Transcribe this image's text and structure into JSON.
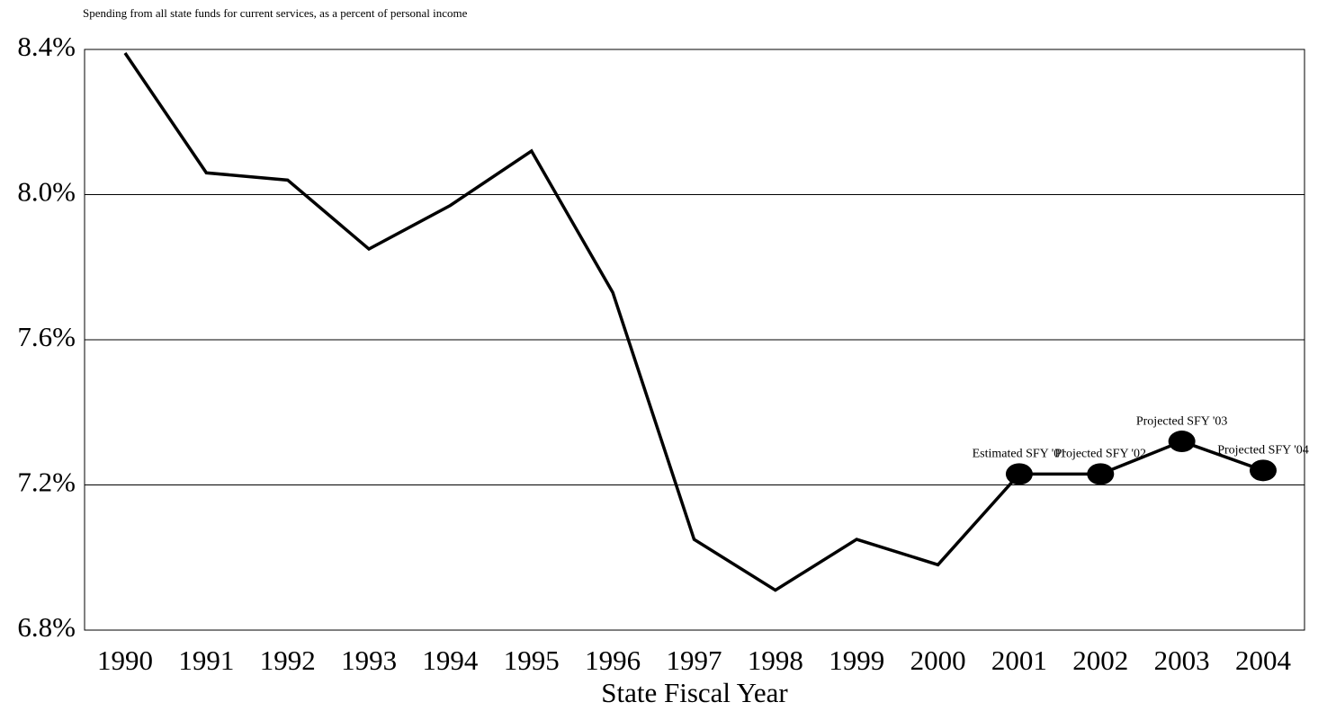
{
  "chart_data": {
    "type": "line",
    "title": "Spending from all state funds for current services, as a percent of personal income",
    "xlabel": "State Fiscal Year",
    "categories": [
      "1990",
      "1991",
      "1992",
      "1993",
      "1994",
      "1995",
      "1996",
      "1997",
      "1998",
      "1999",
      "2000",
      "2001",
      "2002",
      "2003",
      "2004"
    ],
    "values": [
      8.39,
      8.06,
      8.04,
      7.85,
      7.97,
      8.12,
      7.73,
      7.05,
      6.91,
      7.05,
      6.98,
      7.23,
      7.23,
      7.32,
      7.24
    ],
    "point_labels": [
      null,
      null,
      null,
      null,
      null,
      null,
      null,
      null,
      null,
      null,
      null,
      "Estimated SFY '01",
      "Projected SFY '02",
      "Projected SFY '03",
      "Projected SFY '04"
    ],
    "color": "#000000",
    "ylim": [
      6.8,
      8.4
    ],
    "yticks": [
      {
        "value": 6.8,
        "label": "6.8%"
      },
      {
        "value": 7.2,
        "label": "7.2%"
      },
      {
        "value": 7.6,
        "label": "7.6%"
      },
      {
        "value": 8.0,
        "label": "8.0%"
      },
      {
        "value": 8.4,
        "label": "8.4%"
      }
    ],
    "grid": true
  }
}
